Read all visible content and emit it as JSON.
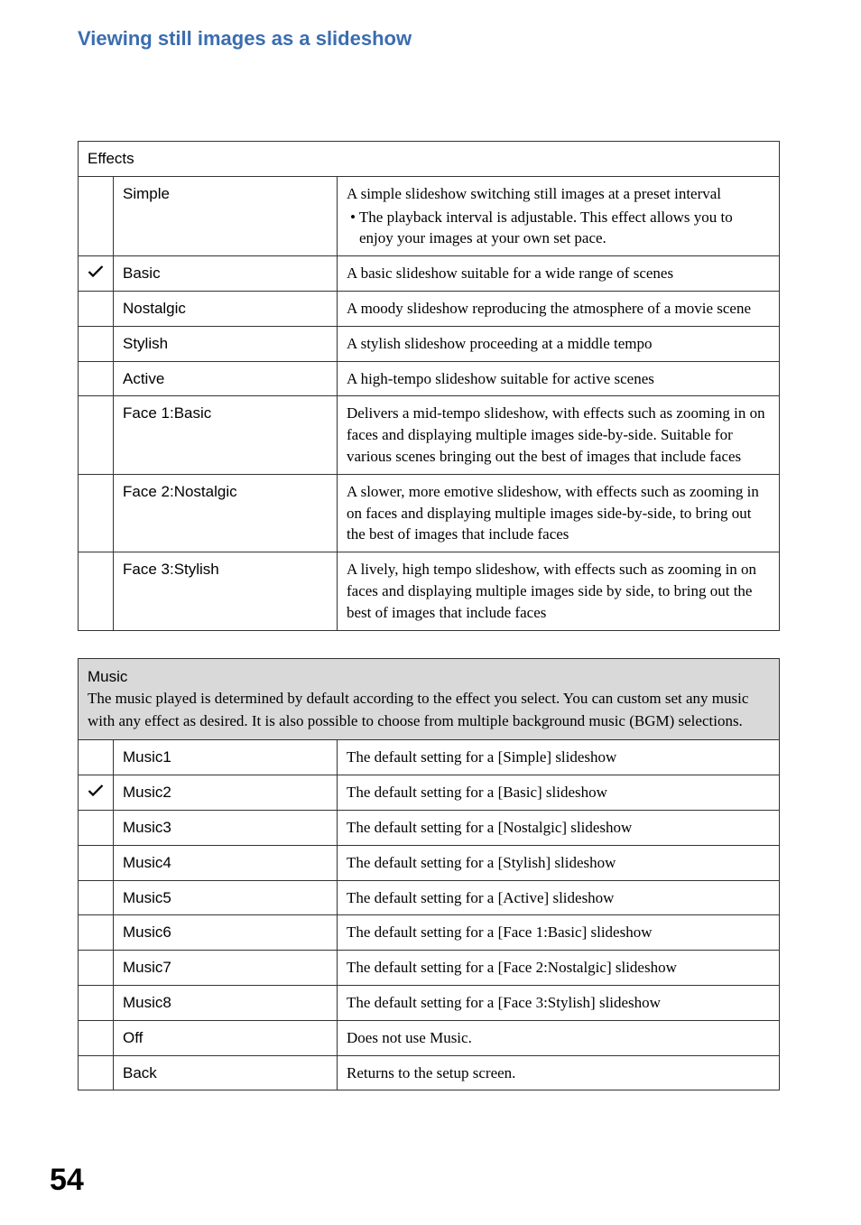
{
  "section_title": "Viewing still images as a slideshow",
  "page_number": "54",
  "effects": {
    "header": "Effects",
    "rows": [
      {
        "checked": false,
        "name": "Simple",
        "desc": "A simple slideshow switching still images at a preset interval",
        "bullet": "The playback interval is adjustable. This effect allows you to enjoy your images at your own set pace."
      },
      {
        "checked": true,
        "name": "Basic",
        "desc": "A basic slideshow suitable for a wide range of scenes"
      },
      {
        "checked": false,
        "name": "Nostalgic",
        "desc": "A moody slideshow reproducing the atmosphere of a movie scene"
      },
      {
        "checked": false,
        "name": "Stylish",
        "desc": "A stylish slideshow proceeding at a middle tempo"
      },
      {
        "checked": false,
        "name": "Active",
        "desc": "A high-tempo slideshow suitable for active scenes"
      },
      {
        "checked": false,
        "name": "Face 1:Basic",
        "desc": "Delivers a mid-tempo slideshow, with effects such as zooming in on faces and displaying multiple images side-by-side. Suitable for various scenes bringing out the best of images that include faces"
      },
      {
        "checked": false,
        "name": "Face 2:Nostalgic",
        "desc": "A slower, more emotive slideshow, with effects such as zooming in on faces and displaying multiple images side-by-side, to bring out the best of images that include faces"
      },
      {
        "checked": false,
        "name": "Face 3:Stylish",
        "desc": "A lively, high tempo slideshow, with effects such as zooming in on faces and displaying multiple images side by side, to bring out the best of images that include faces"
      }
    ]
  },
  "music": {
    "header": "Music",
    "header_desc": "The music played is determined by default according to the effect you select. You can custom set any music with any effect as desired. It is also possible to choose from multiple background music (BGM) selections.",
    "rows": [
      {
        "checked": false,
        "name": "Music1",
        "desc": "The default setting for a [Simple] slideshow"
      },
      {
        "checked": true,
        "name": "Music2",
        "desc": "The default setting for a [Basic] slideshow"
      },
      {
        "checked": false,
        "name": "Music3",
        "desc": "The default setting for a [Nostalgic] slideshow"
      },
      {
        "checked": false,
        "name": "Music4",
        "desc": "The default setting for a [Stylish] slideshow"
      },
      {
        "checked": false,
        "name": "Music5",
        "desc": "The default setting for a [Active] slideshow"
      },
      {
        "checked": false,
        "name": "Music6",
        "desc": "The default setting for a [Face 1:Basic] slideshow"
      },
      {
        "checked": false,
        "name": "Music7",
        "desc": "The default setting for a [Face 2:Nostalgic] slideshow"
      },
      {
        "checked": false,
        "name": "Music8",
        "desc": "The default setting for a [Face 3:Stylish] slideshow"
      },
      {
        "checked": false,
        "name": "Off",
        "desc": "Does not use Music."
      },
      {
        "checked": false,
        "name": "Back",
        "desc": "Returns to the setup screen."
      }
    ]
  }
}
